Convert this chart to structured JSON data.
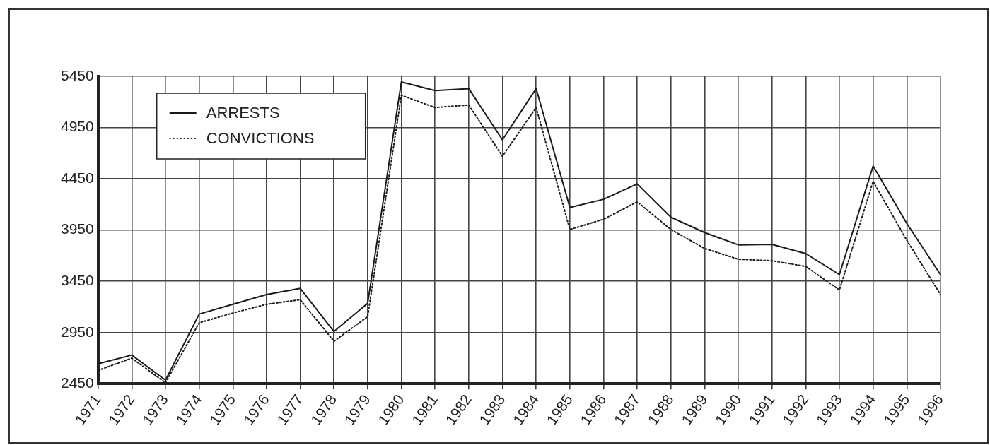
{
  "chart_data": {
    "type": "line",
    "categories": [
      "1971",
      "1972",
      "1973",
      "1974",
      "1975",
      "1976",
      "1977",
      "1978",
      "1979",
      "1980",
      "1981",
      "1982",
      "1983",
      "1984",
      "1985",
      "1986",
      "1987",
      "1988",
      "1989",
      "1990",
      "1991",
      "1992",
      "1993",
      "1994",
      "1995",
      "1996"
    ],
    "series": [
      {
        "name": "ARRESTS",
        "color": "#1a1a1a",
        "line_style": "solid",
        "values": [
          2645,
          2730,
          2485,
          3130,
          3225,
          3320,
          3380,
          2960,
          3235,
          5395,
          5310,
          5330,
          4830,
          5330,
          4170,
          4250,
          4400,
          4075,
          3925,
          3805,
          3810,
          3720,
          3515,
          4575,
          4015,
          3515
        ]
      },
      {
        "name": "CONVICTIONS",
        "color": "#1a1a1a",
        "line_style": "dotted",
        "values": [
          2580,
          2700,
          2460,
          3045,
          3140,
          3225,
          3270,
          2865,
          3105,
          5265,
          5145,
          5170,
          4670,
          5145,
          3955,
          4055,
          4225,
          3955,
          3770,
          3665,
          3650,
          3595,
          3365,
          4425,
          3850,
          3320
        ]
      }
    ],
    "ylim": [
      2450,
      5450
    ],
    "yticks": [
      2450,
      2950,
      3450,
      3950,
      4450,
      4950,
      5450
    ],
    "grid": true,
    "legend": "top left",
    "marker": "none"
  }
}
